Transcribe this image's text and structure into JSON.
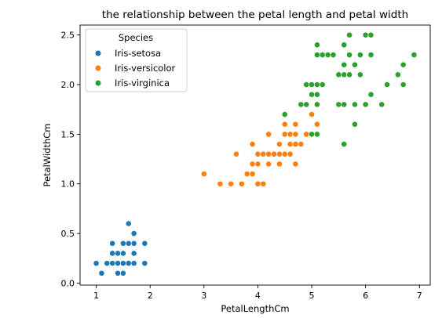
{
  "chart_data": {
    "type": "scatter",
    "title": "the relationship between the petal length and petal width",
    "xlabel": "PetalLengthCm",
    "ylabel": "PetalWidthCm",
    "xlim": [
      0.7,
      7.2
    ],
    "ylim": [
      -0.02,
      2.6
    ],
    "xticks": [
      1,
      2,
      3,
      4,
      5,
      6,
      7
    ],
    "yticks": [
      0.0,
      0.5,
      1.0,
      1.5,
      2.0,
      2.5
    ],
    "xtick_labels": [
      "1",
      "2",
      "3",
      "4",
      "5",
      "6",
      "7"
    ],
    "ytick_labels": [
      "0.0",
      "0.5",
      "1.0",
      "1.5",
      "2.0",
      "2.5"
    ],
    "grid": false,
    "legend": {
      "title": "Species",
      "placement": "top-left"
    },
    "series": [
      {
        "name": "Iris-setosa",
        "color": "#1f77b4",
        "points": [
          [
            1.0,
            0.2
          ],
          [
            1.1,
            0.1
          ],
          [
            1.2,
            0.2
          ],
          [
            1.3,
            0.2
          ],
          [
            1.3,
            0.3
          ],
          [
            1.3,
            0.4
          ],
          [
            1.4,
            0.1
          ],
          [
            1.4,
            0.2
          ],
          [
            1.4,
            0.3
          ],
          [
            1.5,
            0.1
          ],
          [
            1.5,
            0.2
          ],
          [
            1.5,
            0.3
          ],
          [
            1.5,
            0.4
          ],
          [
            1.6,
            0.2
          ],
          [
            1.6,
            0.4
          ],
          [
            1.6,
            0.6
          ],
          [
            1.7,
            0.2
          ],
          [
            1.7,
            0.3
          ],
          [
            1.7,
            0.4
          ],
          [
            1.7,
            0.5
          ],
          [
            1.9,
            0.2
          ],
          [
            1.9,
            0.4
          ]
        ]
      },
      {
        "name": "Iris-versicolor",
        "color": "#ff7f0e",
        "points": [
          [
            3.0,
            1.1
          ],
          [
            3.3,
            1.0
          ],
          [
            3.5,
            1.0
          ],
          [
            3.6,
            1.3
          ],
          [
            3.7,
            1.0
          ],
          [
            3.8,
            1.1
          ],
          [
            3.9,
            1.1
          ],
          [
            3.9,
            1.2
          ],
          [
            3.9,
            1.4
          ],
          [
            4.0,
            1.0
          ],
          [
            4.0,
            1.2
          ],
          [
            4.0,
            1.3
          ],
          [
            4.1,
            1.0
          ],
          [
            4.1,
            1.3
          ],
          [
            4.2,
            1.2
          ],
          [
            4.2,
            1.3
          ],
          [
            4.2,
            1.5
          ],
          [
            4.3,
            1.3
          ],
          [
            4.4,
            1.2
          ],
          [
            4.4,
            1.3
          ],
          [
            4.4,
            1.4
          ],
          [
            4.5,
            1.3
          ],
          [
            4.5,
            1.5
          ],
          [
            4.5,
            1.6
          ],
          [
            4.6,
            1.3
          ],
          [
            4.6,
            1.4
          ],
          [
            4.6,
            1.5
          ],
          [
            4.7,
            1.2
          ],
          [
            4.7,
            1.4
          ],
          [
            4.7,
            1.5
          ],
          [
            4.7,
            1.6
          ],
          [
            4.8,
            1.4
          ],
          [
            4.8,
            1.8
          ],
          [
            4.9,
            1.5
          ],
          [
            5.0,
            1.7
          ],
          [
            5.1,
            1.6
          ]
        ]
      },
      {
        "name": "Iris-virginica",
        "color": "#2ca02c",
        "points": [
          [
            4.5,
            1.7
          ],
          [
            4.8,
            1.8
          ],
          [
            4.9,
            1.8
          ],
          [
            4.9,
            2.0
          ],
          [
            5.0,
            1.5
          ],
          [
            5.0,
            2.0
          ],
          [
            5.0,
            1.9
          ],
          [
            5.1,
            1.5
          ],
          [
            5.1,
            1.8
          ],
          [
            5.1,
            1.9
          ],
          [
            5.1,
            2.0
          ],
          [
            5.1,
            2.3
          ],
          [
            5.1,
            2.4
          ],
          [
            5.2,
            2.0
          ],
          [
            5.2,
            2.3
          ],
          [
            5.3,
            2.3
          ],
          [
            5.4,
            2.3
          ],
          [
            5.5,
            1.8
          ],
          [
            5.5,
            2.1
          ],
          [
            5.6,
            1.4
          ],
          [
            5.6,
            1.8
          ],
          [
            5.6,
            2.1
          ],
          [
            5.6,
            2.2
          ],
          [
            5.6,
            2.4
          ],
          [
            5.7,
            2.1
          ],
          [
            5.7,
            2.3
          ],
          [
            5.7,
            2.5
          ],
          [
            5.8,
            1.6
          ],
          [
            5.8,
            1.8
          ],
          [
            5.8,
            2.2
          ],
          [
            5.9,
            2.1
          ],
          [
            5.9,
            2.3
          ],
          [
            6.0,
            1.8
          ],
          [
            6.0,
            2.5
          ],
          [
            6.1,
            1.9
          ],
          [
            6.1,
            2.3
          ],
          [
            6.1,
            2.5
          ],
          [
            6.3,
            1.8
          ],
          [
            6.4,
            2.0
          ],
          [
            6.6,
            2.1
          ],
          [
            6.7,
            2.0
          ],
          [
            6.7,
            2.2
          ],
          [
            6.9,
            2.3
          ]
        ]
      }
    ]
  }
}
